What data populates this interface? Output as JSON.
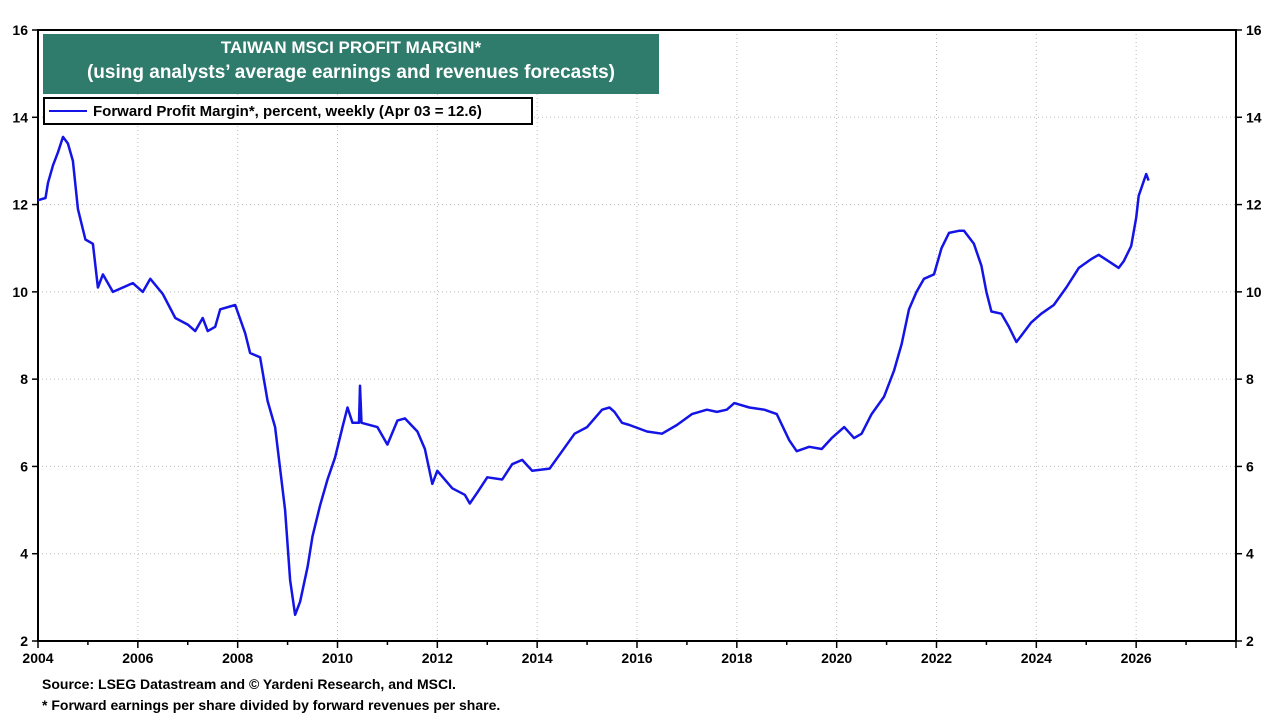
{
  "chart_data": {
    "type": "line",
    "title": "TAIWAN MSCI PROFIT MARGIN*",
    "subtitle": "(using analysts’ average earnings and revenues forecasts)",
    "legend": "Forward Profit Margin*, percent, weekly (Apr 03 = 12.6)",
    "legend_placement": "top-left",
    "xlim": [
      2004,
      2028
    ],
    "ylim": [
      2,
      16
    ],
    "x_ticks": [
      "2004",
      "2006",
      "2008",
      "2010",
      "2012",
      "2014",
      "2016",
      "2018",
      "2020",
      "2022",
      "2024",
      "2026"
    ],
    "y_ticks": [
      "2",
      "4",
      "6",
      "8",
      "10",
      "12",
      "14",
      "16"
    ],
    "grid": true,
    "line_color": "#1414e6",
    "title_bg": "#2f7b6c",
    "series": [
      {
        "name": "Forward Profit Margin*, percent, weekly",
        "points": [
          [
            2004.0,
            12.1
          ],
          [
            2004.15,
            12.15
          ],
          [
            2004.2,
            12.5
          ],
          [
            2004.3,
            12.9
          ],
          [
            2004.4,
            13.2
          ],
          [
            2004.5,
            13.55
          ],
          [
            2004.6,
            13.4
          ],
          [
            2004.7,
            13.0
          ],
          [
            2004.8,
            11.9
          ],
          [
            2004.95,
            11.2
          ],
          [
            2005.1,
            11.1
          ],
          [
            2005.2,
            10.1
          ],
          [
            2005.3,
            10.4
          ],
          [
            2005.5,
            10.0
          ],
          [
            2005.9,
            10.2
          ],
          [
            2006.1,
            10.0
          ],
          [
            2006.25,
            10.3
          ],
          [
            2006.5,
            9.95
          ],
          [
            2006.75,
            9.4
          ],
          [
            2007.0,
            9.25
          ],
          [
            2007.15,
            9.1
          ],
          [
            2007.3,
            9.4
          ],
          [
            2007.4,
            9.1
          ],
          [
            2007.55,
            9.2
          ],
          [
            2007.65,
            9.6
          ],
          [
            2007.95,
            9.7
          ],
          [
            2008.15,
            9.05
          ],
          [
            2008.25,
            8.6
          ],
          [
            2008.45,
            8.5
          ],
          [
            2008.6,
            7.5
          ],
          [
            2008.75,
            6.9
          ],
          [
            2008.95,
            5.0
          ],
          [
            2009.05,
            3.4
          ],
          [
            2009.15,
            2.6
          ],
          [
            2009.25,
            2.9
          ],
          [
            2009.4,
            3.7
          ],
          [
            2009.5,
            4.4
          ],
          [
            2009.65,
            5.1
          ],
          [
            2009.8,
            5.7
          ],
          [
            2009.95,
            6.2
          ],
          [
            2010.1,
            6.9
          ],
          [
            2010.2,
            7.35
          ],
          [
            2010.3,
            7.0
          ],
          [
            2010.43,
            7.0
          ],
          [
            2010.45,
            7.85
          ],
          [
            2010.48,
            7.0
          ],
          [
            2010.8,
            6.9
          ],
          [
            2011.0,
            6.5
          ],
          [
            2011.2,
            7.05
          ],
          [
            2011.35,
            7.1
          ],
          [
            2011.6,
            6.8
          ],
          [
            2011.75,
            6.4
          ],
          [
            2011.9,
            5.6
          ],
          [
            2012.0,
            5.9
          ],
          [
            2012.3,
            5.5
          ],
          [
            2012.55,
            5.35
          ],
          [
            2012.65,
            5.15
          ],
          [
            2012.8,
            5.4
          ],
          [
            2013.0,
            5.75
          ],
          [
            2013.3,
            5.7
          ],
          [
            2013.5,
            6.05
          ],
          [
            2013.7,
            6.15
          ],
          [
            2013.9,
            5.9
          ],
          [
            2014.25,
            5.95
          ],
          [
            2014.5,
            6.35
          ],
          [
            2014.75,
            6.75
          ],
          [
            2015.0,
            6.9
          ],
          [
            2015.3,
            7.3
          ],
          [
            2015.45,
            7.35
          ],
          [
            2015.55,
            7.25
          ],
          [
            2015.7,
            7.0
          ],
          [
            2015.85,
            6.95
          ],
          [
            2016.2,
            6.8
          ],
          [
            2016.5,
            6.75
          ],
          [
            2016.8,
            6.95
          ],
          [
            2017.1,
            7.2
          ],
          [
            2017.4,
            7.3
          ],
          [
            2017.6,
            7.25
          ],
          [
            2017.8,
            7.3
          ],
          [
            2017.95,
            7.45
          ],
          [
            2018.25,
            7.35
          ],
          [
            2018.55,
            7.3
          ],
          [
            2018.8,
            7.2
          ],
          [
            2019.05,
            6.6
          ],
          [
            2019.2,
            6.35
          ],
          [
            2019.45,
            6.45
          ],
          [
            2019.7,
            6.4
          ],
          [
            2019.9,
            6.65
          ],
          [
            2020.15,
            6.9
          ],
          [
            2020.35,
            6.65
          ],
          [
            2020.5,
            6.75
          ],
          [
            2020.7,
            7.2
          ],
          [
            2020.95,
            7.6
          ],
          [
            2021.15,
            8.2
          ],
          [
            2021.3,
            8.8
          ],
          [
            2021.45,
            9.6
          ],
          [
            2021.6,
            10.0
          ],
          [
            2021.75,
            10.3
          ],
          [
            2021.95,
            10.4
          ],
          [
            2022.1,
            11.0
          ],
          [
            2022.25,
            11.35
          ],
          [
            2022.45,
            11.4
          ],
          [
            2022.55,
            11.4
          ],
          [
            2022.75,
            11.1
          ],
          [
            2022.9,
            10.6
          ],
          [
            2023.0,
            10.0
          ],
          [
            2023.1,
            9.55
          ],
          [
            2023.3,
            9.5
          ],
          [
            2023.45,
            9.2
          ],
          [
            2023.6,
            8.85
          ],
          [
            2023.7,
            9.0
          ],
          [
            2023.9,
            9.3
          ],
          [
            2024.1,
            9.5
          ],
          [
            2024.35,
            9.7
          ],
          [
            2024.6,
            10.1
          ],
          [
            2024.85,
            10.55
          ],
          [
            2025.1,
            10.75
          ],
          [
            2025.25,
            10.85
          ],
          [
            2025.45,
            10.7
          ],
          [
            2025.65,
            10.55
          ],
          [
            2025.75,
            10.7
          ],
          [
            2025.9,
            11.05
          ],
          [
            2026.0,
            11.7
          ],
          [
            2026.05,
            12.2
          ],
          [
            2026.2,
            12.7
          ],
          [
            2026.25,
            12.55
          ]
        ]
      }
    ]
  },
  "footer": {
    "source": "Source: LSEG Datastream and © Yardeni Research, and MSCI.",
    "note": "* Forward earnings per share divided by forward revenues per share."
  }
}
